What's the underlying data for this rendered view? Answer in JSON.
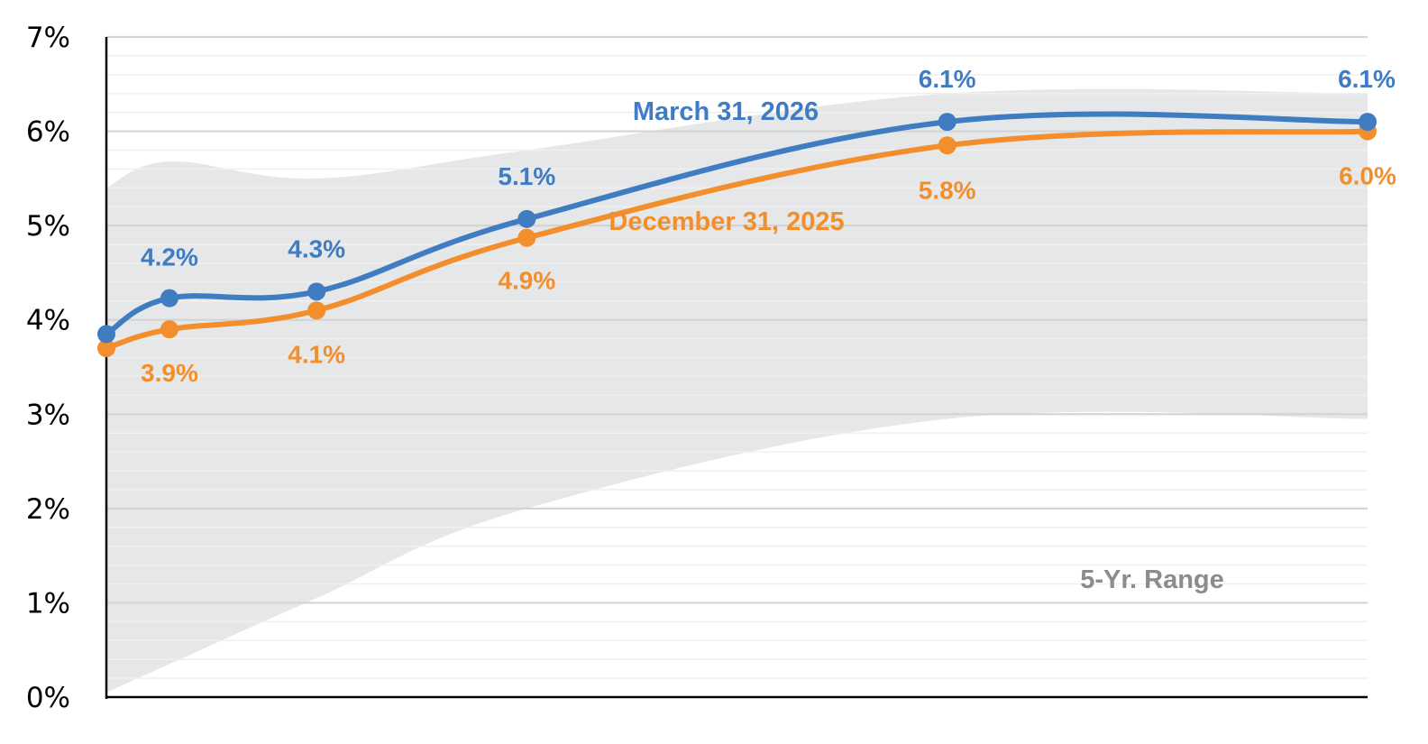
{
  "chart_data": {
    "type": "line",
    "x_positions": [
      0,
      0.15,
      0.5,
      1,
      2,
      3
    ],
    "ylim": [
      0,
      7
    ],
    "y_ticks": [
      "0%",
      "1%",
      "2%",
      "3%",
      "4%",
      "5%",
      "6%",
      "7%"
    ],
    "grid": true,
    "series": [
      {
        "name": "March 31, 2026",
        "color": "#3f7cc2",
        "values": [
          3.85,
          4.23,
          4.3,
          5.07,
          6.1,
          6.1
        ],
        "labels": [
          "",
          "4.2%",
          "4.3%",
          "5.1%",
          "6.1%",
          "6.1%"
        ]
      },
      {
        "name": "December 31, 2025",
        "color": "#f28e2b",
        "values": [
          3.7,
          3.9,
          4.1,
          4.87,
          5.85,
          6.0
        ],
        "labels": [
          "",
          "3.9%",
          "4.1%",
          "4.9%",
          "5.8%",
          "6.0%"
        ]
      }
    ],
    "range_band": {
      "name": "5-Yr. Range",
      "color": "#e6e7e8",
      "label_color": "#8c8c8c",
      "x": [
        0,
        0.15,
        0.5,
        1,
        2,
        3
      ],
      "upper": [
        5.4,
        5.68,
        5.5,
        5.8,
        6.4,
        6.4
      ],
      "lower": [
        0.05,
        0.35,
        1.05,
        2.0,
        2.95,
        2.95
      ]
    }
  }
}
